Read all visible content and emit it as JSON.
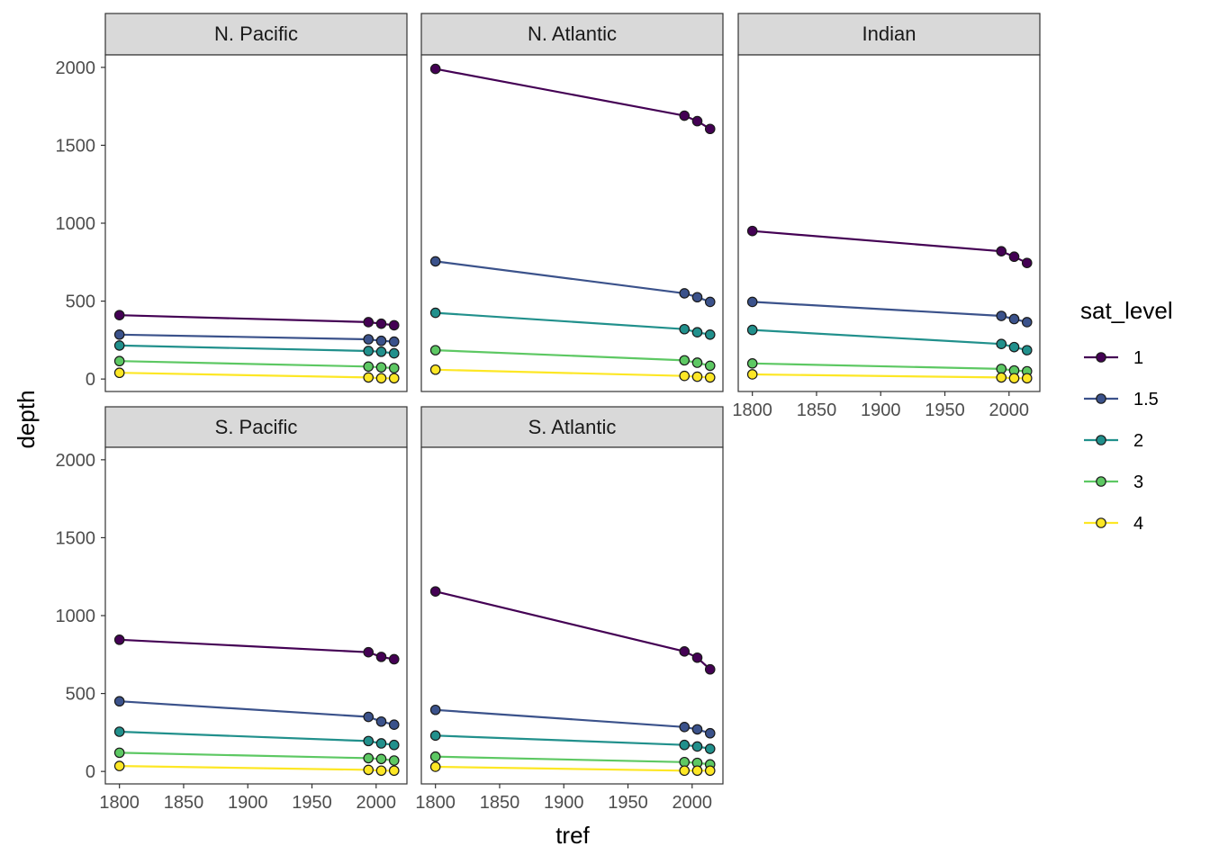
{
  "chart_data": {
    "type": "line",
    "facet_by": "region",
    "xlabel": "tref",
    "ylabel": "depth",
    "xlim": [
      1789,
      2024
    ],
    "ylim": [
      -80,
      2080
    ],
    "x_ticks": [
      1800,
      1850,
      1900,
      1950,
      2000
    ],
    "y_ticks": [
      0,
      500,
      1000,
      1500,
      2000
    ],
    "legend": {
      "title": "sat_level",
      "placement": "right",
      "entries": [
        {
          "label": "1",
          "color": "#440154"
        },
        {
          "label": "1.5",
          "color": "#3B528B"
        },
        {
          "label": "2",
          "color": "#21908C"
        },
        {
          "label": "3",
          "color": "#5DC863"
        },
        {
          "label": "4",
          "color": "#FDE725"
        }
      ]
    },
    "x": [
      1800,
      1994,
      2004,
      2014
    ],
    "facets": [
      {
        "title": "N. Pacific",
        "series": [
          {
            "name": "1",
            "values": [
              410,
              365,
              355,
              345
            ]
          },
          {
            "name": "1.5",
            "values": [
              285,
              255,
              245,
              240
            ]
          },
          {
            "name": "2",
            "values": [
              215,
              180,
              175,
              165
            ]
          },
          {
            "name": "3",
            "values": [
              115,
              80,
              75,
              70
            ]
          },
          {
            "name": "4",
            "values": [
              40,
              10,
              5,
              5
            ]
          }
        ]
      },
      {
        "title": "N. Atlantic",
        "series": [
          {
            "name": "1",
            "values": [
              1990,
              1690,
              1655,
              1605
            ]
          },
          {
            "name": "1.5",
            "values": [
              755,
              550,
              525,
              495
            ]
          },
          {
            "name": "2",
            "values": [
              425,
              320,
              300,
              285
            ]
          },
          {
            "name": "3",
            "values": [
              185,
              120,
              105,
              85
            ]
          },
          {
            "name": "4",
            "values": [
              60,
              20,
              15,
              10
            ]
          }
        ]
      },
      {
        "title": "Indian",
        "series": [
          {
            "name": "1",
            "values": [
              950,
              820,
              785,
              745
            ]
          },
          {
            "name": "1.5",
            "values": [
              495,
              405,
              385,
              365
            ]
          },
          {
            "name": "2",
            "values": [
              315,
              225,
              205,
              185
            ]
          },
          {
            "name": "3",
            "values": [
              100,
              65,
              55,
              50
            ]
          },
          {
            "name": "4",
            "values": [
              30,
              10,
              5,
              5
            ]
          }
        ]
      },
      {
        "title": "S. Pacific",
        "series": [
          {
            "name": "1",
            "values": [
              845,
              765,
              735,
              720
            ]
          },
          {
            "name": "1.5",
            "values": [
              450,
              350,
              320,
              300
            ]
          },
          {
            "name": "2",
            "values": [
              255,
              195,
              180,
              170
            ]
          },
          {
            "name": "3",
            "values": [
              120,
              85,
              80,
              70
            ]
          },
          {
            "name": "4",
            "values": [
              35,
              10,
              5,
              5
            ]
          }
        ]
      },
      {
        "title": "S. Atlantic",
        "series": [
          {
            "name": "1",
            "values": [
              1155,
              770,
              730,
              655
            ]
          },
          {
            "name": "1.5",
            "values": [
              395,
              285,
              270,
              245
            ]
          },
          {
            "name": "2",
            "values": [
              230,
              170,
              160,
              145
            ]
          },
          {
            "name": "3",
            "values": [
              95,
              60,
              55,
              45
            ]
          },
          {
            "name": "4",
            "values": [
              30,
              5,
              5,
              5
            ]
          }
        ]
      }
    ]
  }
}
